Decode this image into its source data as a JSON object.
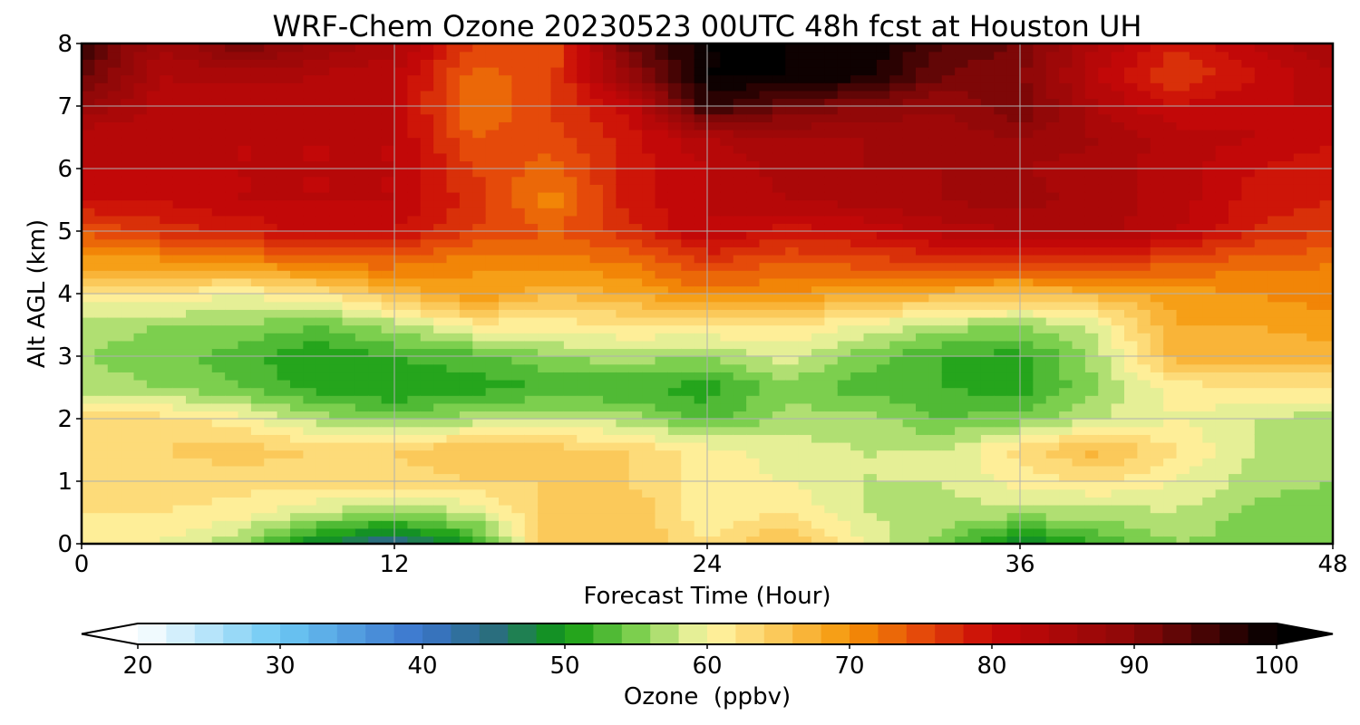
{
  "chart_data": {
    "type": "heatmap",
    "title": "WRF-Chem Ozone  20230523 00UTC 48h fcst at Houston UH",
    "xlabel": "Forecast Time (Hour)",
    "ylabel": "Alt AGL (km)",
    "xlim": [
      0,
      48
    ],
    "ylim": [
      0,
      8
    ],
    "x_ticks": [
      0,
      12,
      24,
      36,
      48
    ],
    "y_ticks": [
      0,
      1,
      2,
      3,
      4,
      5,
      6,
      7,
      8
    ],
    "grid": true,
    "x": [
      0,
      3,
      6,
      9,
      12,
      15,
      18,
      21,
      24,
      27,
      30,
      33,
      36,
      39,
      42,
      45,
      48
    ],
    "y": [
      0,
      0.5,
      1,
      1.5,
      2,
      2.5,
      3,
      3.5,
      4,
      4.5,
      5,
      5.5,
      6,
      6.5,
      7,
      7.5,
      8
    ],
    "z": [
      [
        62,
        60,
        56,
        48,
        43,
        50,
        66,
        66,
        62,
        67,
        60,
        55,
        47,
        52,
        56,
        55,
        54
      ],
      [
        62,
        62,
        61,
        58,
        56,
        58,
        65,
        66,
        60,
        62,
        58,
        57,
        57,
        57,
        58,
        55,
        55
      ],
      [
        63,
        63,
        63,
        63,
        63,
        64,
        64,
        64,
        61,
        60,
        58,
        58,
        61,
        62,
        60,
        57,
        56
      ],
      [
        64,
        64,
        65,
        64,
        64,
        66,
        65,
        64,
        61,
        59,
        58,
        58,
        63,
        67,
        62,
        58,
        57
      ],
      [
        63,
        63,
        61,
        57,
        55,
        57,
        58,
        57,
        53,
        57,
        57,
        54,
        55,
        58,
        60,
        58,
        57
      ],
      [
        57,
        56,
        54,
        51,
        50,
        51,
        52,
        52,
        51,
        55,
        53,
        52,
        51,
        56,
        61,
        62,
        62
      ],
      [
        56,
        55,
        53,
        50,
        52,
        53,
        56,
        57,
        56,
        59,
        55,
        52,
        51,
        57,
        67,
        67,
        67
      ],
      [
        57,
        56,
        56,
        54,
        57,
        61,
        61,
        62,
        62,
        62,
        60,
        57,
        56,
        59,
        68,
        68,
        69
      ],
      [
        61,
        62,
        60,
        62,
        66,
        70,
        66,
        68,
        71,
        70,
        68,
        67,
        66,
        67,
        69,
        70,
        71
      ],
      [
        69,
        69,
        70,
        73,
        73,
        70,
        71,
        72,
        76,
        74,
        75,
        76,
        76,
        77,
        74,
        73,
        72
      ],
      [
        74,
        77,
        78,
        81,
        80,
        76,
        74,
        77,
        82,
        79,
        80,
        83,
        84,
        85,
        82,
        78,
        76
      ],
      [
        80,
        80,
        82,
        82,
        82,
        77,
        71,
        79,
        82,
        84,
        85,
        86,
        87,
        85,
        83,
        79,
        78
      ],
      [
        82,
        82,
        82,
        82,
        82,
        76,
        73,
        79,
        82,
        85,
        86,
        86,
        86,
        85,
        83,
        80,
        79
      ],
      [
        82,
        83,
        82,
        82,
        82,
        74,
        75,
        79,
        84,
        86,
        86,
        87,
        88,
        86,
        83,
        82,
        80
      ],
      [
        88,
        83,
        82,
        83,
        82,
        72,
        76,
        81,
        97,
        92,
        90,
        88,
        92,
        84,
        80,
        82,
        82
      ],
      [
        93,
        84,
        85,
        84,
        82,
        73,
        75,
        88,
        100,
        100,
        99,
        92,
        90,
        82,
        76,
        80,
        84
      ],
      [
        96,
        86,
        92,
        88,
        85,
        76,
        74,
        92,
        100,
        100,
        100,
        94,
        92,
        84,
        78,
        82,
        86
      ]
    ],
    "colorbar": {
      "label": "Ozone  (ppbv)",
      "min": 20,
      "max": 100,
      "ticks": [
        20,
        30,
        40,
        50,
        60,
        70,
        80,
        90,
        100
      ],
      "extend": "both",
      "stops": [
        {
          "v": 20,
          "c": "#ffffff"
        },
        {
          "v": 30,
          "c": "#6cc8f4"
        },
        {
          "v": 40,
          "c": "#3a74cc"
        },
        {
          "v": 45,
          "c": "#2a6e7e"
        },
        {
          "v": 50,
          "c": "#0f9a0f"
        },
        {
          "v": 55,
          "c": "#7ccf4e"
        },
        {
          "v": 60,
          "c": "#fff7a8"
        },
        {
          "v": 65,
          "c": "#fbc95a"
        },
        {
          "v": 70,
          "c": "#f59406"
        },
        {
          "v": 75,
          "c": "#e54a0a"
        },
        {
          "v": 80,
          "c": "#c80808"
        },
        {
          "v": 90,
          "c": "#8c0808"
        },
        {
          "v": 100,
          "c": "#000000"
        }
      ]
    }
  }
}
